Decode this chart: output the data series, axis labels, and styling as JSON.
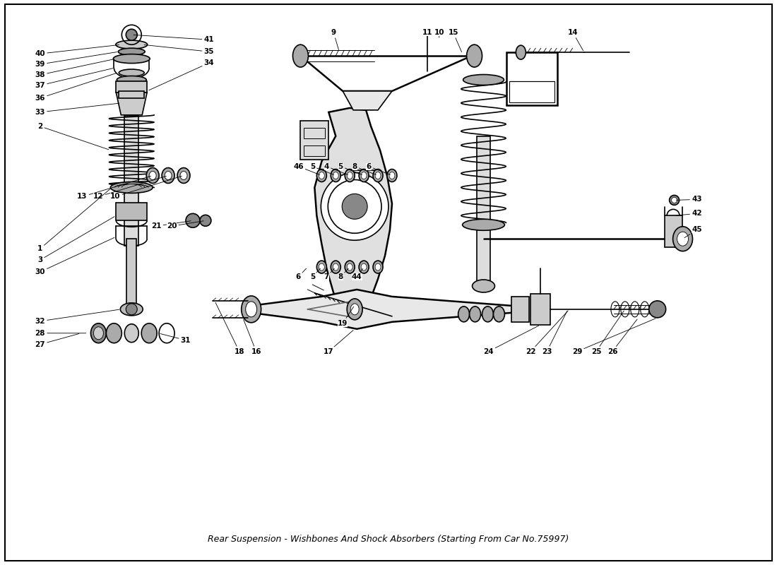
{
  "title": "Rear Suspension - Wishbones And Shock Absorbers (Starting From Car No.75997)",
  "bg_color": "#ffffff",
  "line_color": "#000000",
  "label_color": "#000000",
  "fig_width": 11.0,
  "fig_height": 8.0
}
